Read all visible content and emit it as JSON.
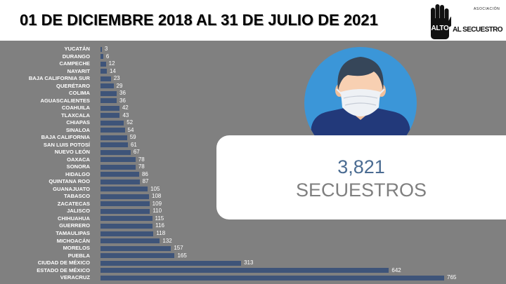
{
  "chart_data": {
    "type": "bar",
    "orientation": "horizontal",
    "title": "01 DE DICIEMBRE 2018 AL 31 DE JULIO DE 2021",
    "xlabel": "",
    "ylabel": "",
    "xlim": [
      0,
      765
    ],
    "grid": false,
    "legend": "none",
    "data_labels": true,
    "categories": [
      "YUCATÁN",
      "DURANGO",
      "CAMPECHE",
      "NAYARIT",
      "BAJA CALIFORNIA SUR",
      "QUERÉTARO",
      "COLIMA",
      "AGUASCALIENTES",
      "COAHUILA",
      "TLAXCALA",
      "CHIAPAS",
      "SINALOA",
      "BAJA CALIFORNIA",
      "SAN LUIS POTOSÍ",
      "NUEVO LEÓN",
      "OAXACA",
      "SONORA",
      "HIDALGO",
      "QUINTANA ROO",
      "GUANAJUATO",
      "TABASCO",
      "ZACATECAS",
      "JALISCO",
      "CHIHUAHUA",
      "GUERRERO",
      "TAMAULIPAS",
      "MICHOACÁN",
      "MORELOS",
      "PUEBLA",
      "CIUDAD DE MÉXICO",
      "ESTADO DE MÉXICO",
      "VERACRUZ"
    ],
    "values": [
      3,
      6,
      12,
      14,
      23,
      29,
      36,
      36,
      42,
      43,
      52,
      54,
      59,
      61,
      67,
      78,
      78,
      86,
      87,
      105,
      108,
      109,
      110,
      115,
      116,
      118,
      132,
      157,
      165,
      313,
      642,
      765
    ]
  },
  "summary": {
    "total": "3,821",
    "label": "SECUESTROS"
  },
  "logo": {
    "icon": "raised-hand-icon",
    "hand_text": "ALTO",
    "small_text": "ASOCIACIÓN",
    "main_text": "AL SECUESTRO"
  },
  "illustration": {
    "icon": "masked-person-icon"
  },
  "colors": {
    "bar": "#3e5479",
    "page_background": "#808080",
    "header_background": "#ffffff",
    "label_text": "#ffffff",
    "circle": "#3b96d8",
    "shirt": "#22397a",
    "total_text": "#4b6c92",
    "total_label_text": "#7f7f7f"
  }
}
